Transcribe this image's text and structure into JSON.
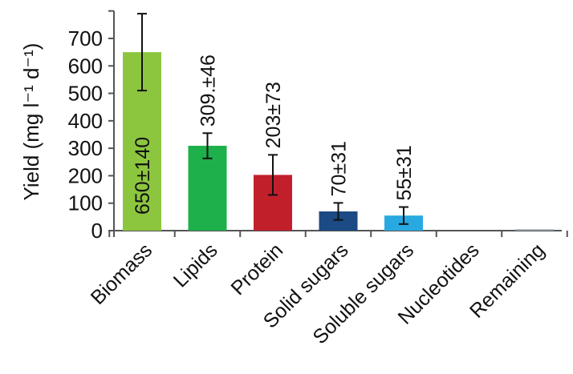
{
  "chart_data": {
    "type": "bar",
    "ylabel": "Yield (mg l⁻¹ d⁻¹)",
    "ylim": [
      0,
      800
    ],
    "yticks": [
      0,
      100,
      200,
      300,
      400,
      500,
      600,
      700
    ],
    "grid": false,
    "categories": [
      "Biomass",
      "Lipids",
      "Protein",
      "Solid sugars",
      "Soluble sugars",
      "Nucleotides",
      "Remaining"
    ],
    "values": [
      650,
      309,
      203,
      70,
      55,
      0,
      5
    ],
    "errors": [
      140,
      46,
      73,
      31,
      31,
      null,
      null
    ],
    "data_labels": [
      "650±140",
      "309.±46",
      "203±73",
      "70±31",
      "55±31",
      "",
      ""
    ],
    "colors": [
      "#8cc63f",
      "#1db04b",
      "#c1202b",
      "#1b4a84",
      "#29a9e1",
      "#9aa3ad",
      "#9aa3ad"
    ]
  }
}
